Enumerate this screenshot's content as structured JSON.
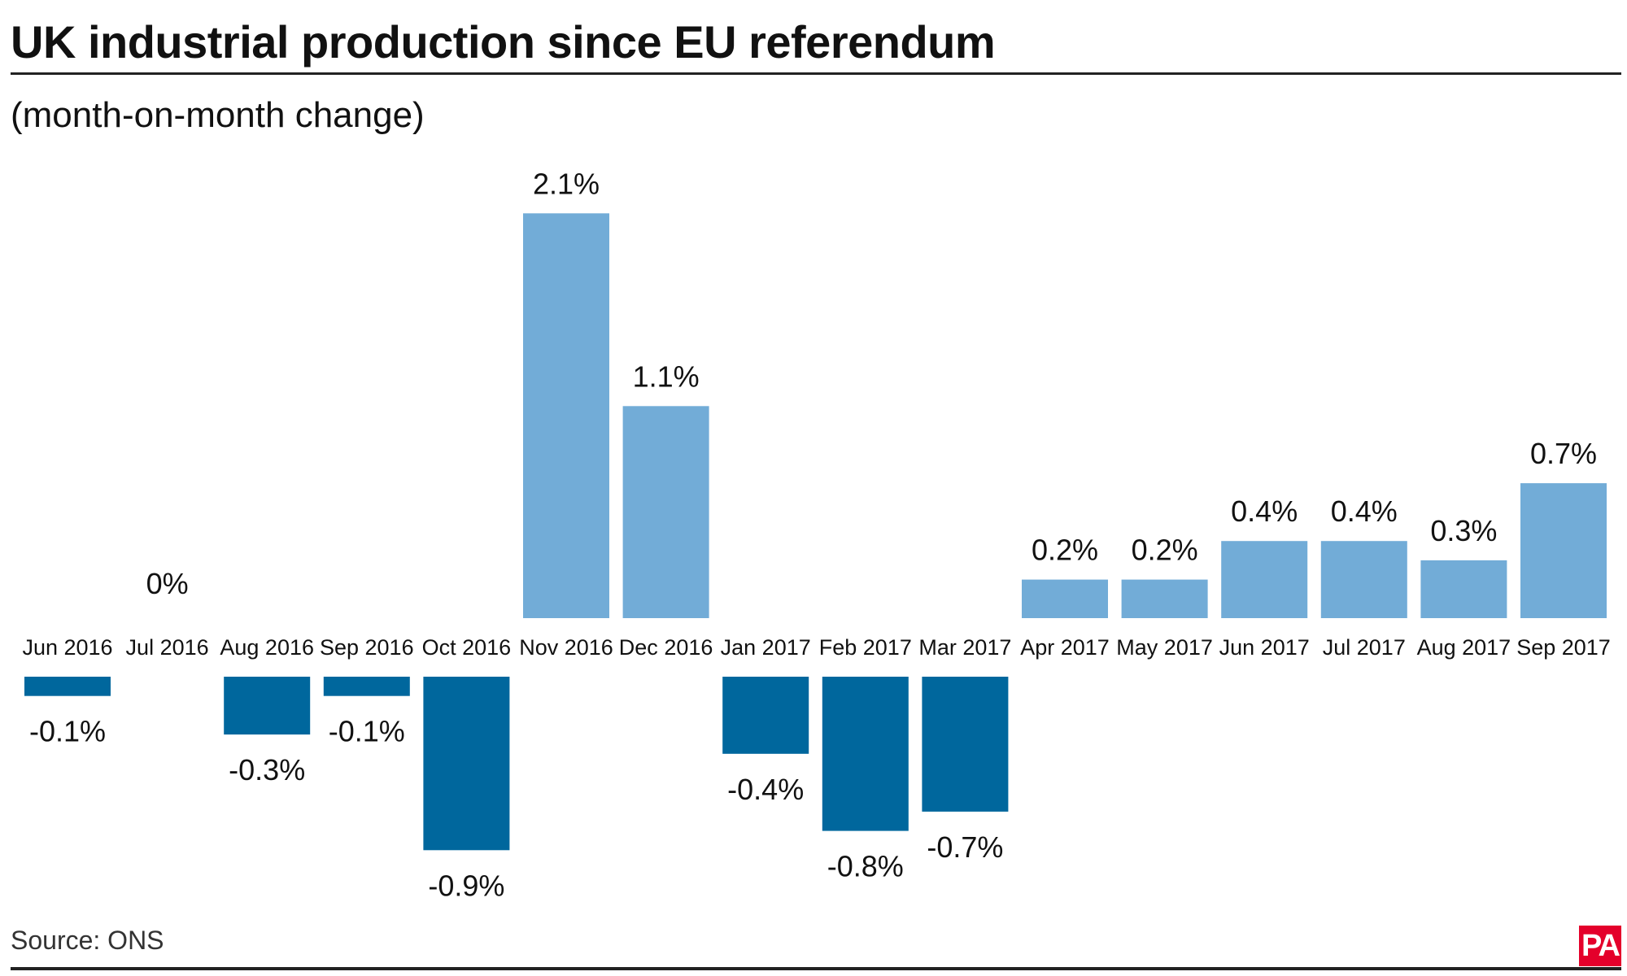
{
  "chart_data": {
    "type": "bar",
    "title": "UK industrial production since EU referendum",
    "subtitle": "(month-on-month change)",
    "xlabel": "",
    "ylabel": "",
    "categories": [
      "Jun 2016",
      "Jul 2016",
      "Aug 2016",
      "Sep 2016",
      "Oct 2016",
      "Nov 2016",
      "Dec 2016",
      "Jan 2017",
      "Feb 2017",
      "Mar 2017",
      "Apr 2017",
      "May 2017",
      "Jun 2017",
      "Jul 2017",
      "Aug 2017",
      "Sep 2017"
    ],
    "values": [
      -0.1,
      0,
      -0.3,
      -0.1,
      -0.9,
      2.1,
      1.1,
      -0.4,
      -0.8,
      -0.7,
      0.2,
      0.2,
      0.4,
      0.4,
      0.3,
      0.7
    ],
    "value_labels": [
      "-0.1%",
      "0%",
      "-0.3%",
      "-0.1%",
      "-0.9%",
      "2.1%",
      "1.1%",
      "-0.4%",
      "-0.8%",
      "-0.7%",
      "0.2%",
      "0.2%",
      "0.4%",
      "0.4%",
      "0.3%",
      "0.7%"
    ],
    "positive_color": "#72acd7",
    "negative_color": "#00679d",
    "grid": false
  },
  "footer": {
    "source": "Source: ONS",
    "logo_text": "PA"
  }
}
